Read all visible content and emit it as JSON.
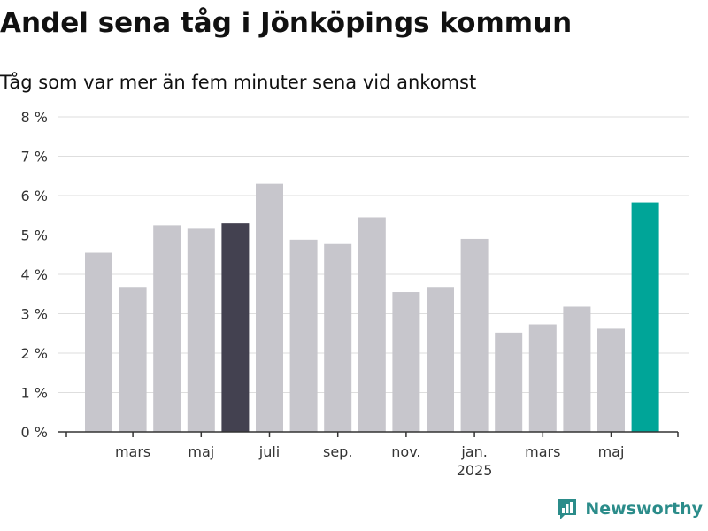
{
  "chart_data": {
    "type": "bar",
    "title": "Andel sena tåg i Jönköpings kommun",
    "subtitle": "Tåg som var mer än fem minuter sena vid ankomst",
    "xlabel": "",
    "ylabel": "",
    "y_unit": "%",
    "ylim": [
      0,
      8
    ],
    "y_ticks": [
      0,
      1,
      2,
      3,
      4,
      5,
      6,
      7,
      8
    ],
    "y_tick_labels": [
      "0 %",
      "1 %",
      "2 %",
      "3 %",
      "4 %",
      "5 %",
      "6 %",
      "7 %",
      "8 %"
    ],
    "grid": true,
    "legend": "none",
    "categories": [
      "2024-02",
      "2024-03",
      "2024-04",
      "2024-05",
      "2024-06",
      "2024-07",
      "2024-08",
      "2024-09",
      "2024-10",
      "2024-11",
      "2024-12",
      "2025-01",
      "2025-02",
      "2025-03",
      "2025-04",
      "2025-05",
      "2025-06"
    ],
    "values": [
      4.55,
      3.68,
      5.25,
      5.16,
      5.3,
      6.3,
      4.88,
      4.77,
      5.45,
      3.55,
      3.68,
      4.9,
      2.52,
      2.73,
      3.18,
      2.62,
      5.83
    ],
    "bar_colors": [
      "#c7c6cc",
      "#c7c6cc",
      "#c7c6cc",
      "#c7c6cc",
      "#434150",
      "#c7c6cc",
      "#c7c6cc",
      "#c7c6cc",
      "#c7c6cc",
      "#c7c6cc",
      "#c7c6cc",
      "#c7c6cc",
      "#c7c6cc",
      "#c7c6cc",
      "#c7c6cc",
      "#c7c6cc",
      "#00a598"
    ],
    "x_tick_labels": [
      {
        "category": "2024-03",
        "label": "mars",
        "sublabel": ""
      },
      {
        "category": "2024-05",
        "label": "maj",
        "sublabel": ""
      },
      {
        "category": "2024-07",
        "label": "juli",
        "sublabel": ""
      },
      {
        "category": "2024-09",
        "label": "sep.",
        "sublabel": ""
      },
      {
        "category": "2024-11",
        "label": "nov.",
        "sublabel": ""
      },
      {
        "category": "2025-01",
        "label": "jan.",
        "sublabel": "2025"
      },
      {
        "category": "2025-03",
        "label": "mars",
        "sublabel": ""
      },
      {
        "category": "2025-05",
        "label": "maj",
        "sublabel": ""
      }
    ]
  },
  "branding": {
    "name": "Newsworthy",
    "color": "#2b8c8a"
  }
}
